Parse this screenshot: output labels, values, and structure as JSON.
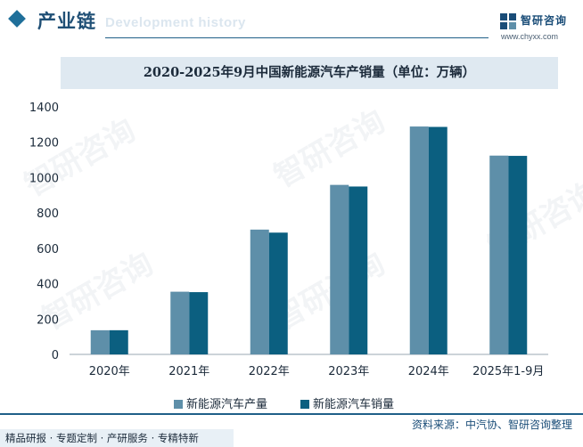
{
  "header": {
    "title": "产业链",
    "ghost_text": "Development history",
    "brand_name": "智研咨询",
    "brand_url": "www.chyxx.com"
  },
  "watermark_text": "智研咨询",
  "colors": {
    "production": "#5e8fa9",
    "sales": "#0b5f80",
    "accent": "#1f5f88",
    "title_band": "#dfe9f1"
  },
  "footer": {
    "source": "资料来源：中汽协、智研咨询整理",
    "slogan": "精品研报 · 专题定制 · 产研服务 · 专精特新"
  },
  "chart_data": {
    "type": "bar",
    "title": "2020-2025年9月中国新能源汽车产销量（单位：万辆）",
    "categories": [
      "2020年",
      "2021年",
      "2022年",
      "2023年",
      "2024年",
      "2025年1-9月"
    ],
    "series": [
      {
        "name": "新能源汽车产量",
        "values": [
          136.6,
          354.5,
          705.8,
          958.7,
          1288.8,
          1124.3
        ]
      },
      {
        "name": "新能源汽车销量",
        "values": [
          136.7,
          352.1,
          688.7,
          949.5,
          1286.6,
          1122.8
        ]
      }
    ],
    "yticks": [
      0,
      200,
      400,
      600,
      800,
      1000,
      1200,
      1400
    ],
    "ylim": [
      0,
      1400
    ],
    "grid": false,
    "legend": "bottom"
  }
}
